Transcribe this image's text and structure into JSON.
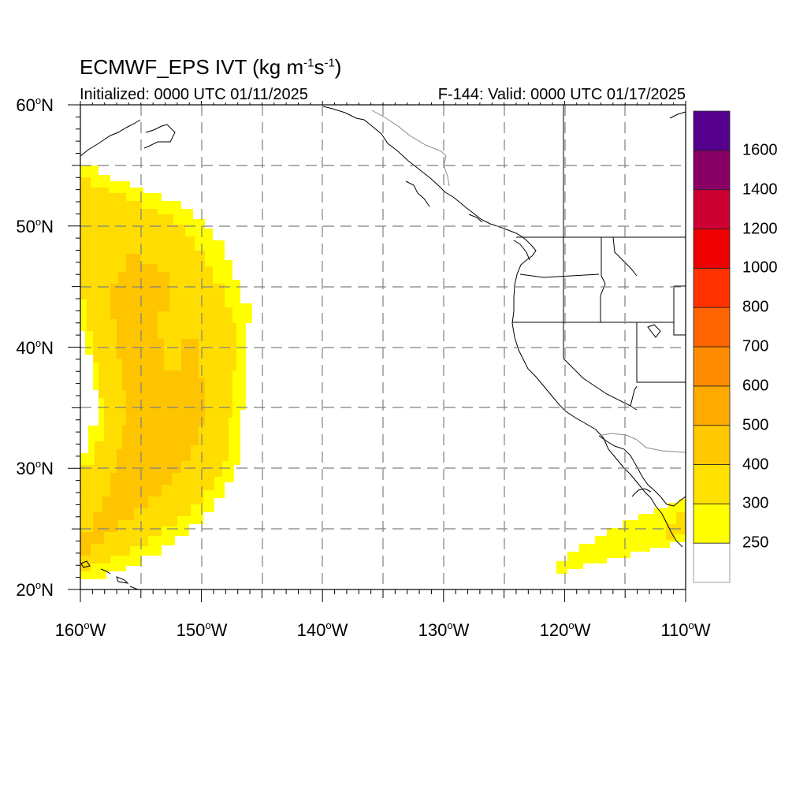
{
  "title": {
    "main": "ECMWF_EPS IVT (kg m",
    "exp1": "-1",
    "mid": "s",
    "exp2": "-1",
    "end": ")"
  },
  "initialized": "Initialized: 0000 UTC 01/11/2025",
  "valid": "F-144: Valid: 0000 UTC 01/17/2025",
  "axes": {
    "lon_ticks": [
      "160",
      "150",
      "140",
      "130",
      "120",
      "110"
    ],
    "lon_suffix": "W",
    "lat_ticks": [
      "60",
      "50",
      "40",
      "30",
      "20"
    ],
    "lat_suffix": "N",
    "degree_symbol": "o",
    "lon_range": [
      -160,
      -110
    ],
    "lat_range": [
      20,
      60
    ],
    "grid": "dashed every 5 degrees"
  },
  "colorbar": {
    "levels": [
      "250",
      "300",
      "400",
      "500",
      "600",
      "700",
      "800",
      "1000",
      "1200",
      "1400",
      "1600"
    ],
    "colors": [
      "#ffffff",
      "#ffff00",
      "#ffe100",
      "#ffc800",
      "#ffaa00",
      "#ff8c00",
      "#ff6400",
      "#ff3200",
      "#ee0000",
      "#cc0033",
      "#880066",
      "#55008c"
    ],
    "units": "kg m-1 s-1"
  },
  "chart_data": {
    "type": "heatmap",
    "field": "Integrated Vapor Transport",
    "features": [
      {
        "name": "western plume",
        "max_band": "400-500",
        "lat_span": [
          20.5,
          55
        ],
        "lon_span": [
          -160,
          -145.5
        ]
      },
      {
        "name": "southern plume",
        "max_band": "300-400",
        "lat_span": [
          21.5,
          27
        ],
        "lon_span": [
          -120.5,
          -110
        ]
      }
    ]
  }
}
